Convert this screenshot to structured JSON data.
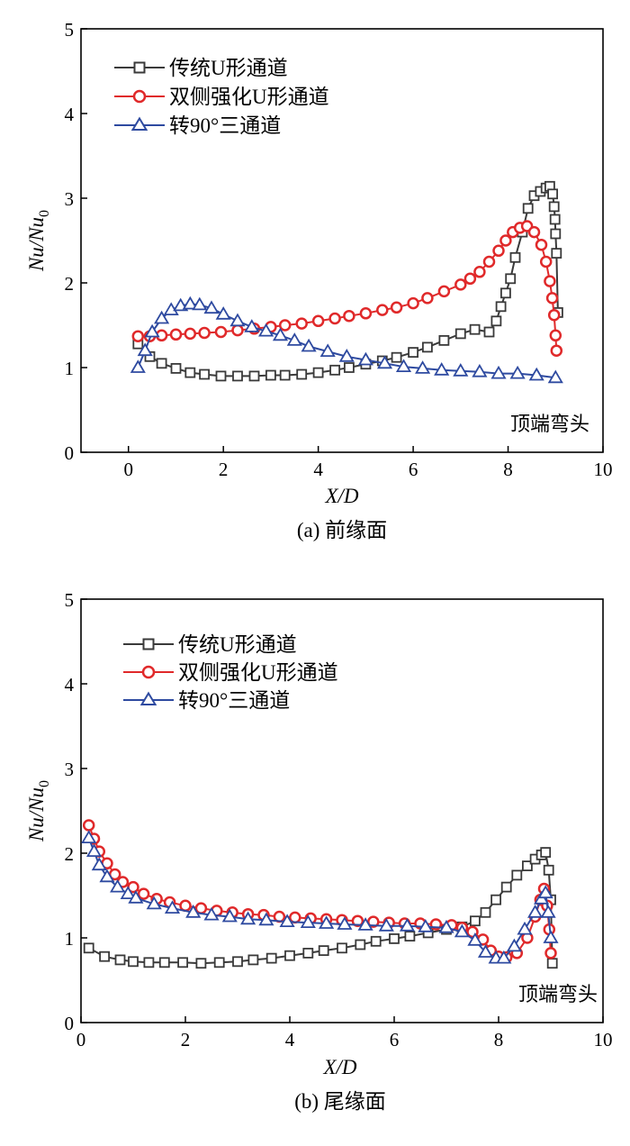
{
  "chart_data": [
    {
      "type": "line",
      "caption": "(a) 前缘面",
      "annotation": "顶端弯头",
      "ylabel": "Nu/Nu0",
      "xlabel": "X/D",
      "xlim": [
        -1,
        10
      ],
      "ylim": [
        0,
        5
      ],
      "xticks": [
        "0",
        "2",
        "4",
        "6",
        "8",
        "10"
      ],
      "yticks": [
        "0",
        "1",
        "2",
        "3",
        "4",
        "5"
      ],
      "legend_position": "top-left",
      "series": [
        {
          "name": "传统U形通道",
          "color": "#3a3a3a",
          "marker": "square",
          "x": [
            0.2,
            0.45,
            0.7,
            1.0,
            1.3,
            1.6,
            1.95,
            2.3,
            2.65,
            3.0,
            3.3,
            3.65,
            4.0,
            4.35,
            4.65,
            5.0,
            5.35,
            5.65,
            6.0,
            6.3,
            6.65,
            7.0,
            7.3,
            7.6,
            7.75,
            7.85,
            7.95,
            8.05,
            8.15,
            8.3,
            8.42,
            8.55,
            8.68,
            8.8,
            8.88,
            8.94,
            8.97,
            8.99,
            9.0,
            9.02,
            9.05
          ],
          "y": [
            1.28,
            1.13,
            1.05,
            0.99,
            0.94,
            0.92,
            0.9,
            0.9,
            0.9,
            0.91,
            0.91,
            0.92,
            0.94,
            0.97,
            1.0,
            1.04,
            1.08,
            1.12,
            1.18,
            1.24,
            1.32,
            1.4,
            1.45,
            1.42,
            1.55,
            1.72,
            1.88,
            2.05,
            2.3,
            2.6,
            2.88,
            3.03,
            3.08,
            3.12,
            3.14,
            3.05,
            2.9,
            2.75,
            2.58,
            2.35,
            1.65
          ]
        },
        {
          "name": "双侧强化U形通道",
          "color": "#e0292a",
          "marker": "circle",
          "x": [
            0.2,
            0.45,
            0.7,
            1.0,
            1.3,
            1.6,
            1.95,
            2.3,
            2.65,
            3.0,
            3.3,
            3.65,
            4.0,
            4.35,
            4.65,
            5.0,
            5.35,
            5.65,
            6.0,
            6.3,
            6.65,
            7.0,
            7.2,
            7.4,
            7.6,
            7.8,
            7.95,
            8.1,
            8.25,
            8.4,
            8.55,
            8.7,
            8.8,
            8.88,
            8.93,
            8.97,
            9.0,
            9.02
          ],
          "y": [
            1.37,
            1.37,
            1.38,
            1.39,
            1.4,
            1.41,
            1.42,
            1.44,
            1.46,
            1.48,
            1.5,
            1.52,
            1.55,
            1.58,
            1.61,
            1.64,
            1.68,
            1.71,
            1.76,
            1.82,
            1.9,
            1.98,
            2.05,
            2.13,
            2.25,
            2.38,
            2.5,
            2.6,
            2.65,
            2.67,
            2.6,
            2.45,
            2.25,
            2.02,
            1.82,
            1.62,
            1.38,
            1.2
          ]
        },
        {
          "name": "转90°三通道",
          "color": "#2e4aa0",
          "marker": "triangle",
          "x": [
            0.2,
            0.35,
            0.5,
            0.7,
            0.9,
            1.1,
            1.3,
            1.5,
            1.75,
            2.0,
            2.3,
            2.6,
            2.9,
            3.2,
            3.5,
            3.8,
            4.2,
            4.6,
            5.0,
            5.4,
            5.8,
            6.2,
            6.6,
            7.0,
            7.4,
            7.8,
            8.2,
            8.6,
            9.0
          ],
          "y": [
            1.0,
            1.2,
            1.42,
            1.58,
            1.68,
            1.73,
            1.75,
            1.74,
            1.7,
            1.63,
            1.55,
            1.48,
            1.43,
            1.38,
            1.32,
            1.25,
            1.19,
            1.13,
            1.09,
            1.05,
            1.01,
            0.99,
            0.97,
            0.96,
            0.95,
            0.93,
            0.93,
            0.91,
            0.88
          ]
        }
      ]
    },
    {
      "type": "line",
      "caption": "(b) 尾缘面",
      "annotation": "顶端弯头",
      "ylabel": "Nu/Nu0",
      "xlabel": "X/D",
      "xlim": [
        0,
        10
      ],
      "ylim": [
        0,
        5
      ],
      "xticks": [
        "0",
        "2",
        "4",
        "6",
        "8",
        "10"
      ],
      "yticks": [
        "0",
        "1",
        "2",
        "3",
        "4",
        "5"
      ],
      "legend_position": "top-left",
      "series": [
        {
          "name": "传统U形通道",
          "color": "#3a3a3a",
          "marker": "square",
          "x": [
            0.15,
            0.45,
            0.75,
            1.0,
            1.3,
            1.6,
            1.95,
            2.3,
            2.65,
            3.0,
            3.3,
            3.65,
            4.0,
            4.35,
            4.65,
            5.0,
            5.35,
            5.65,
            6.0,
            6.3,
            6.65,
            7.0,
            7.3,
            7.55,
            7.75,
            7.95,
            8.15,
            8.35,
            8.55,
            8.7,
            8.82,
            8.9,
            8.96,
            9.0,
            9.03
          ],
          "y": [
            0.88,
            0.78,
            0.74,
            0.72,
            0.71,
            0.71,
            0.71,
            0.7,
            0.71,
            0.72,
            0.74,
            0.76,
            0.79,
            0.82,
            0.85,
            0.88,
            0.92,
            0.96,
            0.99,
            1.02,
            1.06,
            1.1,
            1.13,
            1.2,
            1.3,
            1.45,
            1.6,
            1.74,
            1.85,
            1.93,
            1.98,
            2.01,
            1.8,
            1.45,
            0.7
          ]
        },
        {
          "name": "双侧强化U形通道",
          "color": "#e0292a",
          "marker": "circle",
          "x": [
            0.15,
            0.25,
            0.35,
            0.5,
            0.65,
            0.8,
            1.0,
            1.2,
            1.45,
            1.7,
            2.0,
            2.3,
            2.6,
            2.9,
            3.2,
            3.5,
            3.8,
            4.1,
            4.4,
            4.7,
            5.0,
            5.3,
            5.6,
            5.9,
            6.2,
            6.5,
            6.8,
            7.1,
            7.3,
            7.5,
            7.7,
            7.85,
            8.0,
            8.15,
            8.35,
            8.55,
            8.7,
            8.8,
            8.87,
            8.93,
            8.97,
            9.0
          ],
          "y": [
            2.33,
            2.17,
            2.02,
            1.88,
            1.75,
            1.66,
            1.6,
            1.52,
            1.46,
            1.42,
            1.38,
            1.35,
            1.32,
            1.3,
            1.28,
            1.27,
            1.25,
            1.24,
            1.23,
            1.22,
            1.21,
            1.2,
            1.19,
            1.18,
            1.17,
            1.17,
            1.16,
            1.15,
            1.12,
            1.07,
            0.98,
            0.85,
            0.78,
            0.77,
            0.82,
            1.0,
            1.25,
            1.45,
            1.58,
            1.38,
            1.1,
            0.82
          ]
        },
        {
          "name": "转90°三通道",
          "color": "#2e4aa0",
          "marker": "triangle",
          "x": [
            0.15,
            0.25,
            0.35,
            0.5,
            0.7,
            0.9,
            1.05,
            1.4,
            1.75,
            2.15,
            2.5,
            2.85,
            3.2,
            3.55,
            3.95,
            4.35,
            4.7,
            5.05,
            5.45,
            5.85,
            6.25,
            6.6,
            7.0,
            7.3,
            7.55,
            7.75,
            7.95,
            8.1,
            8.3,
            8.5,
            8.7,
            8.82,
            8.9,
            8.95,
            9.0
          ],
          "y": [
            2.18,
            2.02,
            1.86,
            1.72,
            1.6,
            1.52,
            1.47,
            1.4,
            1.35,
            1.3,
            1.27,
            1.25,
            1.22,
            1.21,
            1.19,
            1.18,
            1.17,
            1.16,
            1.15,
            1.14,
            1.14,
            1.13,
            1.12,
            1.07,
            0.97,
            0.83,
            0.76,
            0.76,
            0.9,
            1.1,
            1.3,
            1.46,
            1.53,
            1.3,
            1.0
          ]
        }
      ]
    }
  ]
}
